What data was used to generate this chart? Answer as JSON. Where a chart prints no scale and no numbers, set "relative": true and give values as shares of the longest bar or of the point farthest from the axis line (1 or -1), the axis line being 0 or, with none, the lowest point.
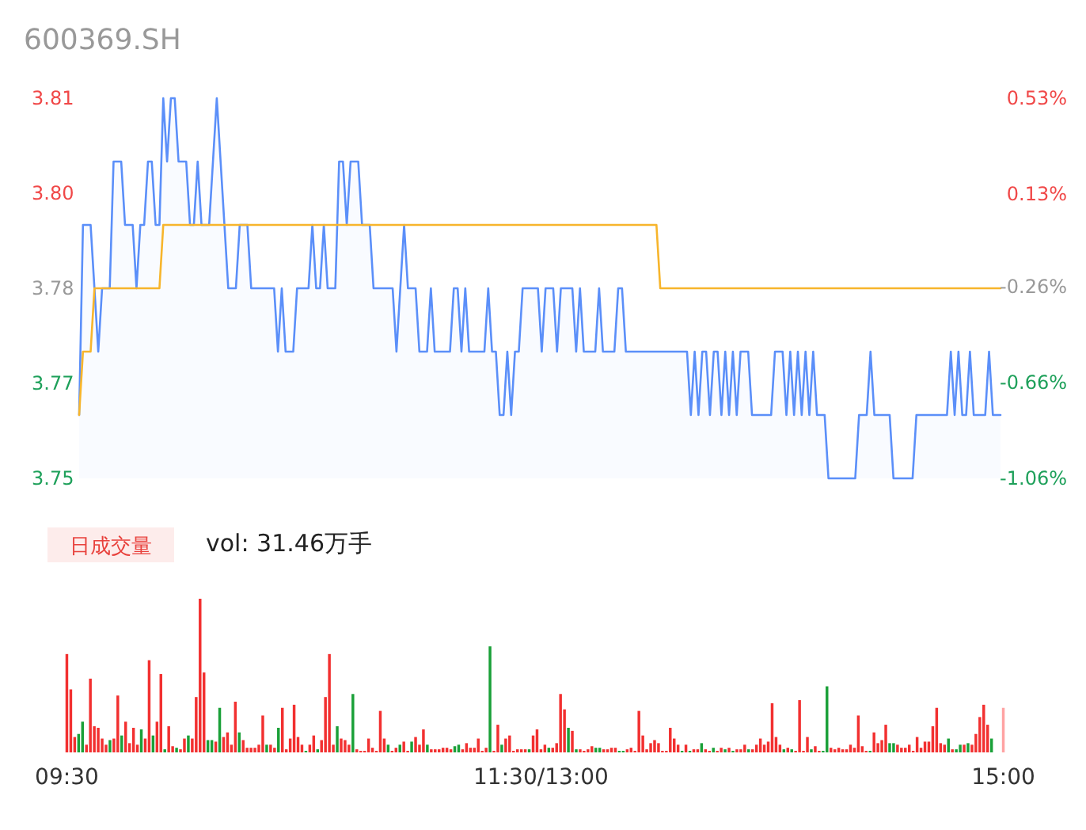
{
  "chart_data": [
    {
      "type": "line",
      "title": "600369.SH",
      "ylim": [
        3.75,
        3.81
      ],
      "yticks": [
        3.75,
        {
          "value": 3.765,
          "label": "3.77"
        },
        3.78,
        {
          "value": 3.795,
          "label": "3.80"
        },
        3.81
      ],
      "y2lim": [
        -1.06,
        0.53
      ],
      "y2ticks": [
        {
          "value": -1.06,
          "label": "-1.06%"
        },
        {
          "value": -0.66,
          "label": "-0.66%"
        },
        {
          "value": -0.26,
          "label": "-0.26%"
        },
        {
          "value": 0.13,
          "label": "0.13%"
        },
        {
          "value": 0.53,
          "label": "0.53%"
        }
      ],
      "tick_labels": "y",
      "categories": [
        null,
        null,
        null,
        null,
        null,
        null,
        null,
        null,
        null,
        null,
        null,
        null,
        null,
        null,
        null,
        null,
        null,
        null,
        null,
        null,
        null,
        null,
        null,
        null,
        null,
        null,
        null,
        null,
        null,
        null,
        null,
        null,
        null,
        null,
        null,
        null,
        null,
        null,
        null,
        null,
        null,
        null,
        null,
        null,
        null,
        null,
        null,
        null,
        null,
        null,
        null,
        null,
        null,
        null,
        null,
        null,
        null,
        null,
        null,
        null,
        null,
        null,
        null,
        null,
        null,
        null,
        null,
        null,
        null,
        null,
        null,
        null,
        null,
        null,
        null,
        null,
        null,
        null,
        null,
        null,
        null,
        null,
        null,
        null,
        null,
        null,
        null,
        null,
        null,
        null,
        null,
        null,
        null,
        null,
        null,
        null,
        null,
        null,
        null,
        null,
        null,
        null,
        null,
        null,
        null,
        null,
        null,
        null,
        null,
        null,
        null,
        null,
        null,
        null,
        null,
        null,
        null,
        null,
        null,
        null,
        null,
        null,
        null,
        null,
        null,
        null,
        null,
        null,
        null,
        null,
        null,
        null,
        null,
        null,
        null,
        null,
        null,
        null,
        null,
        null,
        null,
        null,
        null,
        null,
        null,
        null,
        null,
        null,
        null,
        null,
        null,
        null,
        null,
        null,
        null,
        null,
        null,
        null,
        null,
        null,
        null,
        null,
        null,
        null,
        null,
        null,
        null,
        null,
        null,
        null,
        null,
        null,
        null,
        null,
        null,
        null,
        null,
        null,
        null,
        null,
        null,
        null,
        null,
        null,
        null,
        null,
        null,
        null,
        null,
        null,
        null,
        null,
        null,
        null,
        null,
        null,
        null,
        null,
        null,
        null,
        null,
        null,
        null,
        null,
        null,
        null,
        null,
        null,
        null,
        null,
        null,
        null,
        null,
        null,
        null,
        null,
        null,
        null,
        null,
        null,
        null,
        null,
        null,
        null,
        null,
        null,
        null,
        null,
        null,
        null,
        null,
        null,
        null,
        null,
        null,
        null,
        null,
        null,
        null,
        null,
        null,
        null
      ],
      "series": [
        {
          "type": "area",
          "color": "#5b8ff9",
          "values": [
            3.76,
            3.79,
            3.79,
            3.79,
            3.78,
            3.77,
            3.78,
            3.78,
            3.78,
            3.8,
            3.8,
            3.8,
            3.79,
            3.79,
            3.79,
            3.78,
            3.79,
            3.79,
            3.8,
            3.8,
            3.79,
            3.79,
            3.81,
            3.8,
            3.81,
            3.81,
            3.8,
            3.8,
            3.8,
            3.79,
            3.79,
            3.8,
            3.79,
            3.79,
            3.79,
            3.8,
            3.81,
            3.8,
            3.79,
            3.78,
            3.78,
            3.78,
            3.79,
            3.79,
            3.79,
            3.78,
            3.78,
            3.78,
            3.78,
            3.78,
            3.78,
            3.78,
            3.77,
            3.78,
            3.77,
            3.77,
            3.77,
            3.78,
            3.78,
            3.78,
            3.78,
            3.79,
            3.78,
            3.78,
            3.79,
            3.78,
            3.78,
            3.78,
            3.8,
            3.8,
            3.79,
            3.8,
            3.8,
            3.8,
            3.79,
            3.79,
            3.79,
            3.78,
            3.78,
            3.78,
            3.78,
            3.78,
            3.78,
            3.77,
            3.78,
            3.79,
            3.78,
            3.78,
            3.78,
            3.77,
            3.77,
            3.77,
            3.78,
            3.77,
            3.77,
            3.77,
            3.77,
            3.77,
            3.78,
            3.78,
            3.77,
            3.78,
            3.77,
            3.77,
            3.77,
            3.77,
            3.77,
            3.78,
            3.77,
            3.77,
            3.76,
            3.76,
            3.77,
            3.76,
            3.77,
            3.77,
            3.78,
            3.78,
            3.78,
            3.78,
            3.78,
            3.77,
            3.78,
            3.78,
            3.78,
            3.77,
            3.78,
            3.78,
            3.78,
            3.78,
            3.77,
            3.78,
            3.77,
            3.77,
            3.77,
            3.77,
            3.78,
            3.77,
            3.77,
            3.77,
            3.77,
            3.78,
            3.78,
            3.77,
            3.77,
            3.77,
            3.77,
            3.77,
            3.77,
            3.77,
            3.77,
            3.77,
            3.77,
            3.77,
            3.77,
            3.77,
            3.77,
            3.77,
            3.77,
            3.77,
            3.76,
            3.77,
            3.76,
            3.77,
            3.77,
            3.76,
            3.77,
            3.77,
            3.76,
            3.77,
            3.76,
            3.77,
            3.76,
            3.77,
            3.77,
            3.77,
            3.76,
            3.76,
            3.76,
            3.76,
            3.76,
            3.76,
            3.77,
            3.77,
            3.77,
            3.76,
            3.77,
            3.76,
            3.77,
            3.76,
            3.77,
            3.76,
            3.77,
            3.76,
            3.76,
            3.76,
            3.75,
            3.75,
            3.75,
            3.75,
            3.75,
            3.75,
            3.75,
            3.75,
            3.76,
            3.76,
            3.76,
            3.77,
            3.76,
            3.76,
            3.76,
            3.76,
            3.76,
            3.75,
            3.75,
            3.75,
            3.75,
            3.75,
            3.75,
            3.76,
            3.76,
            3.76,
            3.76,
            3.76,
            3.76,
            3.76,
            3.76,
            3.76,
            3.77,
            3.76,
            3.77,
            3.76,
            3.76,
            3.77,
            3.76,
            3.76,
            3.76,
            3.76,
            3.77,
            3.76,
            3.76,
            3.76
          ]
        },
        {
          "type": "line",
          "color": "#f7b52c",
          "values": [
            3.76,
            3.77,
            3.77,
            3.77,
            3.78,
            3.78,
            3.78,
            3.78,
            3.78,
            3.78,
            3.78,
            3.78,
            3.78,
            3.78,
            3.78,
            3.78,
            3.78,
            3.78,
            3.78,
            3.78,
            3.78,
            3.78,
            3.79,
            3.79,
            3.79,
            3.79,
            3.79,
            3.79,
            3.79,
            3.79,
            3.79,
            3.79,
            3.79,
            3.79,
            3.79,
            3.79,
            3.79,
            3.79,
            3.79,
            3.79,
            3.79,
            3.79,
            3.79,
            3.79,
            3.79,
            3.79,
            3.79,
            3.79,
            3.79,
            3.79,
            3.79,
            3.79,
            3.79,
            3.79,
            3.79,
            3.79,
            3.79,
            3.79,
            3.79,
            3.79,
            3.79,
            3.79,
            3.79,
            3.79,
            3.79,
            3.79,
            3.79,
            3.79,
            3.79,
            3.79,
            3.79,
            3.79,
            3.79,
            3.79,
            3.79,
            3.79,
            3.79,
            3.79,
            3.79,
            3.79,
            3.79,
            3.79,
            3.79,
            3.79,
            3.79,
            3.79,
            3.79,
            3.79,
            3.79,
            3.79,
            3.79,
            3.79,
            3.79,
            3.79,
            3.79,
            3.79,
            3.79,
            3.79,
            3.79,
            3.79,
            3.79,
            3.79,
            3.79,
            3.79,
            3.79,
            3.79,
            3.79,
            3.79,
            3.79,
            3.79,
            3.79,
            3.79,
            3.79,
            3.79,
            3.79,
            3.79,
            3.79,
            3.79,
            3.79,
            3.79,
            3.79,
            3.79,
            3.79,
            3.79,
            3.79,
            3.79,
            3.79,
            3.79,
            3.79,
            3.79,
            3.79,
            3.79,
            3.79,
            3.79,
            3.79,
            3.79,
            3.79,
            3.79,
            3.79,
            3.79,
            3.79,
            3.79,
            3.79,
            3.79,
            3.79,
            3.79,
            3.79,
            3.79,
            3.79,
            3.79,
            3.79,
            3.79,
            3.78,
            3.78,
            3.78,
            3.78,
            3.78,
            3.78,
            3.78,
            3.78,
            3.78,
            3.78,
            3.78,
            3.78,
            3.78,
            3.78,
            3.78,
            3.78,
            3.78,
            3.78,
            3.78,
            3.78,
            3.78,
            3.78,
            3.78,
            3.78,
            3.78,
            3.78,
            3.78,
            3.78,
            3.78,
            3.78,
            3.78,
            3.78,
            3.78,
            3.78,
            3.78,
            3.78,
            3.78,
            3.78,
            3.78,
            3.78,
            3.78,
            3.78,
            3.78,
            3.78,
            3.78,
            3.78,
            3.78,
            3.78,
            3.78,
            3.78,
            3.78,
            3.78,
            3.78,
            3.78,
            3.78,
            3.78,
            3.78,
            3.78,
            3.78,
            3.78,
            3.78,
            3.78,
            3.78,
            3.78,
            3.78,
            3.78,
            3.78,
            3.78,
            3.78,
            3.78,
            3.78,
            3.78,
            3.78,
            3.78,
            3.78,
            3.78,
            3.78,
            3.78,
            3.78,
            3.78,
            3.78,
            3.78,
            3.78,
            3.78,
            3.78,
            3.78,
            3.78,
            3.78,
            3.78,
            3.78
          ]
        }
      ]
    },
    {
      "type": "bar",
      "title": "日成交量",
      "subtitle": "vol: 31.46万手",
      "relative": true,
      "tick_labels": "x",
      "categories": [
        "09:30",
        null,
        null,
        null,
        null,
        null,
        null,
        null,
        null,
        null,
        null,
        null,
        null,
        null,
        null,
        null,
        null,
        null,
        null,
        null,
        null,
        null,
        null,
        null,
        null,
        null,
        null,
        null,
        null,
        null,
        null,
        null,
        null,
        null,
        null,
        null,
        null,
        null,
        null,
        null,
        null,
        null,
        null,
        null,
        null,
        null,
        null,
        null,
        null,
        null,
        null,
        null,
        null,
        null,
        null,
        null,
        null,
        null,
        null,
        null,
        null,
        null,
        null,
        null,
        null,
        null,
        null,
        null,
        null,
        null,
        null,
        null,
        null,
        null,
        null,
        null,
        null,
        null,
        null,
        null,
        null,
        null,
        null,
        null,
        null,
        null,
        null,
        null,
        null,
        null,
        null,
        null,
        null,
        null,
        null,
        null,
        null,
        null,
        null,
        null,
        null,
        null,
        null,
        null,
        null,
        null,
        null,
        null,
        null,
        null,
        null,
        null,
        null,
        null,
        null,
        null,
        null,
        null,
        null,
        null,
        null,
        "11:30/13:00",
        null,
        null,
        null,
        null,
        null,
        null,
        null,
        null,
        null,
        null,
        null,
        null,
        null,
        null,
        null,
        null,
        null,
        null,
        null,
        null,
        null,
        null,
        null,
        null,
        null,
        null,
        null,
        null,
        null,
        null,
        null,
        null,
        null,
        null,
        null,
        null,
        null,
        null,
        null,
        null,
        null,
        null,
        null,
        null,
        null,
        null,
        null,
        null,
        null,
        null,
        null,
        null,
        null,
        null,
        null,
        null,
        null,
        null,
        null,
        null,
        null,
        null,
        null,
        null,
        null,
        null,
        null,
        null,
        null,
        null,
        null,
        null,
        null,
        null,
        null,
        null,
        null,
        null,
        null,
        null,
        null,
        null,
        null,
        null,
        null,
        null,
        null,
        null,
        null,
        null,
        null,
        null,
        null,
        null,
        null,
        null,
        null,
        null,
        null,
        null,
        null,
        null,
        null,
        null,
        null,
        null,
        null,
        null,
        null,
        null,
        null,
        null,
        null,
        null,
        null,
        null,
        null,
        "15:00"
      ],
      "values": [
        0.64,
        0.41,
        0.1,
        0.12,
        0.2,
        0.05,
        0.48,
        0.17,
        0.16,
        0.09,
        0.05,
        0.08,
        0.09,
        0.37,
        0.11,
        0.2,
        0.06,
        0.16,
        0.05,
        0.15,
        0.09,
        0.6,
        0.11,
        0.2,
        0.51,
        0.02,
        0.17,
        0.04,
        0.03,
        0.02,
        0.09,
        0.11,
        0.09,
        0.36,
        1,
        0.52,
        0.08,
        0.08,
        0.07,
        0.29,
        0.1,
        0.13,
        0.05,
        0.33,
        0.13,
        0.08,
        0.03,
        0.03,
        0.03,
        0.05,
        0.24,
        0.05,
        0.05,
        0.03,
        0.16,
        0.29,
        0.02,
        0.09,
        0.31,
        0.1,
        0.05,
        0.01,
        0.05,
        0.11,
        0.02,
        0.08,
        0.36,
        0.64,
        0.05,
        0.17,
        0.09,
        0.08,
        0.05,
        0.38,
        0.02,
        0.01,
        0.01,
        0.09,
        0.03,
        0.01,
        0.27,
        0.09,
        0.05,
        0.01,
        0.03,
        0.05,
        0.07,
        0.01,
        0.07,
        0.1,
        0.05,
        0.15,
        0.05,
        0.02,
        0.02,
        0.02,
        0.03,
        0.03,
        0.02,
        0.04,
        0.05,
        0.02,
        0.06,
        0.03,
        0.03,
        0.09,
        0.01,
        0.03,
        0.69,
        0.01,
        0.18,
        0.05,
        0.09,
        0.11,
        0.01,
        0.02,
        0.02,
        0.02,
        0.02,
        0.11,
        0.15,
        0.02,
        0.05,
        0.03,
        0.03,
        0.06,
        0.38,
        0.28,
        0.16,
        0.14,
        0.02,
        0.02,
        0.01,
        0.02,
        0.04,
        0.03,
        0.03,
        0.02,
        0.02,
        0.03,
        0.03,
        0.01,
        0.01,
        0.02,
        0.03,
        0.01,
        0.27,
        0.11,
        0.02,
        0.06,
        0.08,
        0.06,
        0.01,
        0.01,
        0.16,
        0.09,
        0.05,
        0.01,
        0.05,
        0.01,
        0.02,
        0.02,
        0.06,
        0.02,
        0.01,
        0.03,
        0.01,
        0.03,
        0.02,
        0.03,
        0.01,
        0.02,
        0.02,
        0.05,
        0.02,
        0.02,
        0.05,
        0.09,
        0.05,
        0.07,
        0.32,
        0.1,
        0.05,
        0.02,
        0.03,
        0.02,
        0.01,
        0.34,
        0.01,
        0.1,
        0.02,
        0.04,
        0.01,
        0.01,
        0.43,
        0.03,
        0.02,
        0.03,
        0.02,
        0.02,
        0.05,
        0.03,
        0.24,
        0.04,
        0.01,
        0.01,
        0.13,
        0.06,
        0.08,
        0.18,
        0.06,
        0.06,
        0.05,
        0.03,
        0.03,
        0.05,
        0.01,
        0.1,
        0.03,
        0.07,
        0.07,
        0.17,
        0.29,
        0.06,
        0.05,
        0.09,
        0.02,
        0.02,
        0.05,
        0.05,
        0.06,
        0.05,
        0.12,
        0.23,
        0.31,
        0.18,
        0.09,
        null,
        null,
        0.29
      ],
      "colors": [
        "#f23030",
        "#f23030",
        "#f23030",
        "#1aa038",
        "#1aa038",
        "#f23030",
        "#f23030",
        "#f23030",
        "#f23030",
        "#f23030",
        "#f23030",
        "#1aa038",
        "#f23030",
        "#f23030",
        "#1aa038",
        "#f23030",
        "#f23030",
        "#f23030",
        "#f23030",
        "#1aa038",
        "#f23030",
        "#f23030",
        "#1aa038",
        "#f23030",
        "#f23030",
        "#1aa038",
        "#f23030",
        "#f23030",
        "#1aa038",
        "#f23030",
        "#f23030",
        "#1aa038",
        "#f23030",
        "#f23030",
        "#f23030",
        "#f23030",
        "#1aa038",
        "#1aa038",
        "#f23030",
        "#1aa038",
        "#f23030",
        "#f23030",
        "#f23030",
        "#f23030",
        "#1aa038",
        "#f23030",
        "#f23030",
        "#f23030",
        "#f23030",
        "#f23030",
        "#f23030",
        "#1aa038",
        "#f23030",
        "#f23030",
        "#1aa038",
        "#f23030",
        "#f23030",
        "#f23030",
        "#f23030",
        "#f23030",
        "#f23030",
        "#1aa038",
        "#f23030",
        "#f23030",
        "#1aa038",
        "#f23030",
        "#f23030",
        "#f23030",
        "#f23030",
        "#1aa038",
        "#f23030",
        "#f23030",
        "#f23030",
        "#1aa038",
        "#f23030",
        "#f23030",
        "#f23030",
        "#f23030",
        "#f23030",
        "#f23030",
        "#f23030",
        "#f23030",
        "#1aa038",
        "#f23030",
        "#f23030",
        "#1aa038",
        "#f23030",
        "#f23030",
        "#1aa038",
        "#f23030",
        "#f23030",
        "#f23030",
        "#1aa038",
        "#f23030",
        "#f23030",
        "#f23030",
        "#f23030",
        "#f23030",
        "#f23030",
        "#1aa038",
        "#1aa038",
        "#f23030",
        "#f23030",
        "#f23030",
        "#f23030",
        "#f23030",
        "#f23030",
        "#f23030",
        "#1aa038",
        "#f23030",
        "#f23030",
        "#1aa038",
        "#f23030",
        "#f23030",
        "#f23030",
        "#f23030",
        "#f23030",
        "#f23030",
        "#1aa038",
        "#f23030",
        "#f23030",
        "#f23030",
        "#f23030",
        "#1aa038",
        "#f23030",
        "#f23030",
        "#f23030",
        "#f23030",
        "#1aa038",
        "#f23030",
        "#1aa038",
        "#f23030",
        "#f23030",
        "#f23030",
        "#f23030",
        "#1aa038",
        "#1aa038",
        "#f23030",
        "#f23030",
        "#f23030",
        "#f23030",
        "#1aa038",
        "#1aa038",
        "#f23030",
        "#f23030",
        "#f23030",
        "#f23030",
        "#f23030",
        "#f23030",
        "#f23030",
        "#f23030",
        "#f23030",
        "#f23030",
        "#f23030",
        "#f23030",
        "#f23030",
        "#f23030",
        "#1aa038",
        "#f23030",
        "#1aa038",
        "#f23030",
        "#f23030",
        "#1aa038",
        "#f23030",
        "#f23030",
        "#1aa038",
        "#f23030",
        "#f23030",
        "#1aa038",
        "#f23030",
        "#1aa038",
        "#f23030",
        "#f23030",
        "#f23030",
        "#1aa038",
        "#f23030",
        "#f23030",
        "#f23030",
        "#f23030",
        "#f23030",
        "#f23030",
        "#f23030",
        "#f23030",
        "#1aa038",
        "#f23030",
        "#1aa038",
        "#f23030",
        "#f23030",
        "#f23030",
        "#f23030",
        "#1aa038",
        "#f23030",
        "#f23030",
        "#1aa038",
        "#1aa038",
        "#f23030",
        "#f23030",
        "#f23030",
        "#f23030",
        "#f23030",
        "#f23030",
        "#f23030",
        "#f23030",
        "#f23030",
        "#f23030",
        "#1aa038",
        "#f23030",
        "#f23030",
        "#f23030",
        "#f23030",
        "#1aa038",
        "#1aa038",
        "#f23030",
        "#f23030",
        "#f23030",
        "#f23030",
        "#f23030",
        "#f23030",
        "#f23030",
        "#f23030",
        "#f23030",
        "#f23030",
        "#f23030",
        "#f23030",
        "#f23030",
        "#1aa038",
        "#f23030",
        "#1aa038",
        "#1aa038",
        "#f23030",
        "#1aa038",
        "#f23030",
        "#f23030",
        "#f23030",
        "#f23030",
        "#f23030",
        "#1aa038",
        "#f23030",
        "#f23030",
        "#ffa3a3"
      ]
    }
  ]
}
